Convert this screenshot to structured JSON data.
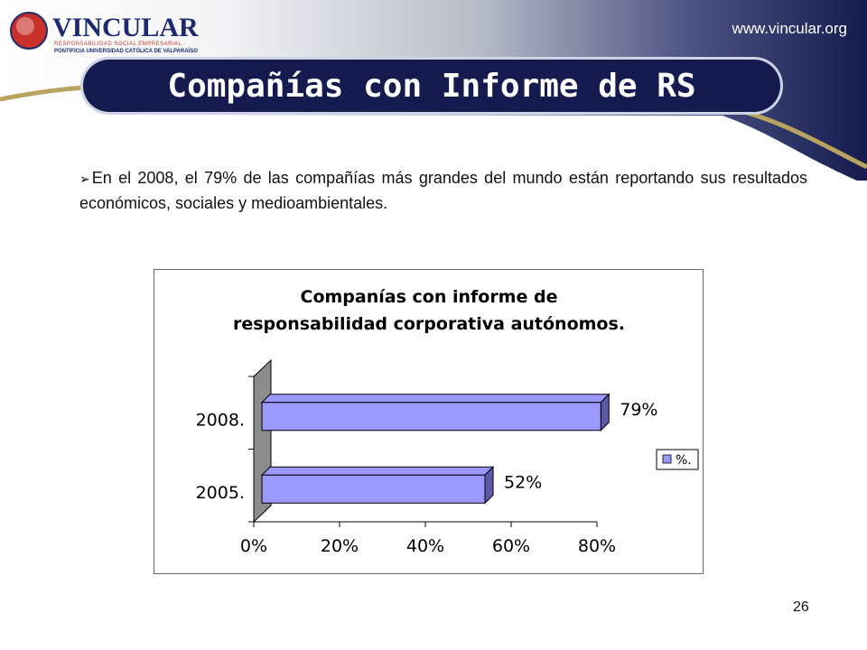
{
  "logo": {
    "name": "VINCULAR",
    "line1": "RESPONSABILIDAD SOCIAL EMPRESARIAL",
    "line2": "PONTIFICIA UNIVERSIDAD CATÓLICA DE VALPARAÍSO"
  },
  "website": "www.vincular.org",
  "title": "Compañías con Informe de RS",
  "bullet_text": "En el 2008,  el 79% de las compañías más grandes del mundo están reportando sus resultados económicos, sociales y medioambientales.",
  "page_number": "26",
  "colors": {
    "navy": "#151b4e",
    "bar_fill": "#9999ff",
    "bar_side": "#5a5aa8",
    "wall": "#8c8c8c"
  },
  "chart_data": {
    "type": "bar",
    "orientation": "horizontal",
    "title_lines": [
      "Companías con informe de",
      "responsabilidad corporativa autónomos."
    ],
    "categories": [
      "2005.",
      "2008."
    ],
    "series": [
      {
        "name": "%.",
        "values": [
          52,
          79
        ]
      }
    ],
    "data_labels": [
      "52%",
      "79%"
    ],
    "x_ticks": [
      "0%",
      "20%",
      "40%",
      "60%",
      "80%"
    ],
    "xlim": [
      0,
      80
    ],
    "legend_position": "right",
    "grid": false
  }
}
